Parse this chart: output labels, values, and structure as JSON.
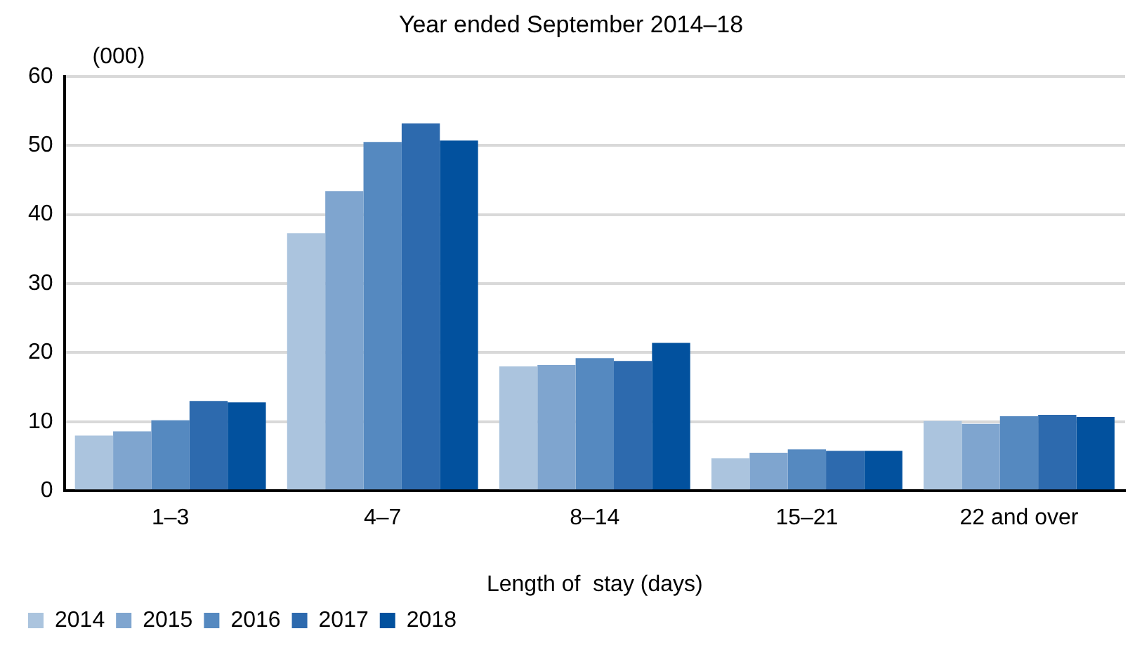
{
  "chart_data": {
    "type": "bar",
    "title": "Year ended September 2014–18",
    "ylabel": "(000)",
    "xlabel": "Length of  stay (days)",
    "categories": [
      "1–3",
      "4–7",
      "8–14",
      "15–21",
      "22 and over"
    ],
    "series": [
      {
        "name": "2014",
        "color": "#abc4de",
        "values": [
          8.0,
          37.3,
          18.0,
          4.7,
          10.1
        ]
      },
      {
        "name": "2015",
        "color": "#7fa5cf",
        "values": [
          8.6,
          43.4,
          18.2,
          5.5,
          9.7
        ]
      },
      {
        "name": "2016",
        "color": "#5589c0",
        "values": [
          10.2,
          50.5,
          19.2,
          6.0,
          10.8
        ]
      },
      {
        "name": "2017",
        "color": "#2d6aae",
        "values": [
          13.0,
          53.2,
          18.8,
          5.8,
          11.0
        ]
      },
      {
        "name": "2018",
        "color": "#02519e",
        "values": [
          12.8,
          50.7,
          21.4,
          5.8,
          10.7
        ]
      }
    ],
    "ylim": [
      0,
      60
    ],
    "yticks": [
      0,
      10,
      20,
      30,
      40,
      50,
      60
    ],
    "grid": "y",
    "legend": "bottom left"
  }
}
